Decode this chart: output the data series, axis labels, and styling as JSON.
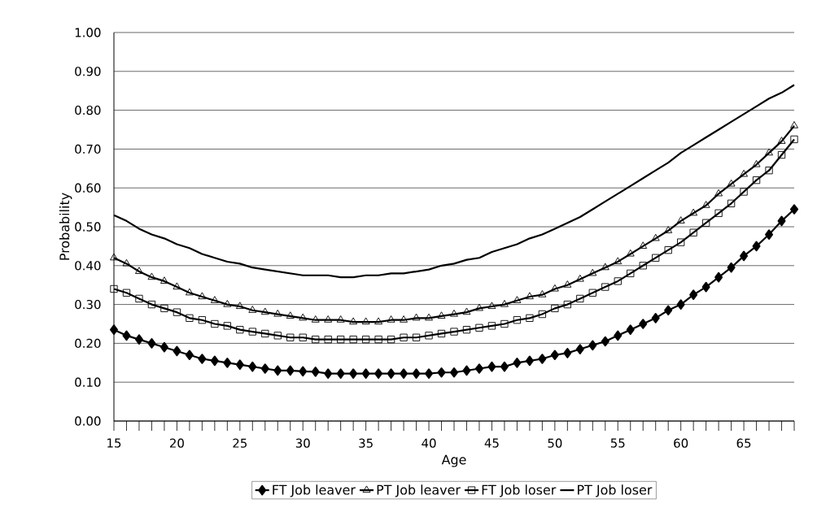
{
  "chart_data": {
    "type": "line",
    "xlabel": "Age",
    "ylabel": "Probability",
    "categories": [
      "15",
      null,
      null,
      null,
      null,
      "20",
      null,
      null,
      null,
      null,
      "25",
      null,
      null,
      null,
      null,
      "30",
      null,
      null,
      null,
      null,
      "35",
      null,
      null,
      null,
      null,
      "40",
      null,
      null,
      null,
      null,
      "45",
      null,
      null,
      null,
      null,
      "50",
      null,
      null,
      null,
      null,
      "55",
      null,
      null,
      null,
      null,
      "60",
      null,
      null,
      null,
      null,
      "65",
      null,
      null,
      null,
      null
    ],
    "ylim": [
      0,
      1
    ],
    "yticks": [
      {
        "value": 0,
        "label": "0.00"
      },
      {
        "value": 0.1,
        "label": "0.10"
      },
      {
        "value": 0.2,
        "label": "0.20"
      },
      {
        "value": 0.3,
        "label": "0.30"
      },
      {
        "value": 0.4,
        "label": "0.40"
      },
      {
        "value": 0.5,
        "label": "0.50"
      },
      {
        "value": 0.6,
        "label": "0.60"
      },
      {
        "value": 0.7,
        "label": "0.70"
      },
      {
        "value": 0.8,
        "label": "0.80"
      },
      {
        "value": 0.9,
        "label": "0.90"
      },
      {
        "value": 1,
        "label": "1.00"
      }
    ],
    "grid": "y",
    "legend": "bottom",
    "series": [
      {
        "name": "FT Job leaver",
        "color": "#000000",
        "marker": "diamond",
        "values": [
          0.235,
          0.22,
          0.21,
          0.2,
          0.19,
          0.18,
          0.17,
          0.16,
          0.155,
          0.15,
          0.145,
          0.14,
          0.135,
          0.13,
          0.13,
          0.128,
          0.127,
          0.122,
          0.122,
          0.122,
          0.122,
          0.122,
          0.122,
          0.122,
          0.122,
          0.122,
          0.125,
          0.125,
          0.13,
          0.135,
          0.14,
          0.14,
          0.15,
          0.155,
          0.16,
          0.17,
          0.175,
          0.185,
          0.195,
          0.205,
          0.22,
          0.235,
          0.25,
          0.265,
          0.285,
          0.3,
          0.325,
          0.345,
          0.37,
          0.395,
          0.425,
          0.45,
          0.48,
          0.515,
          0.545
        ]
      },
      {
        "name": "PT Job leaver",
        "color": "#000000",
        "marker": "triangle",
        "values": [
          0.42,
          0.405,
          0.385,
          0.37,
          0.36,
          0.345,
          0.33,
          0.32,
          0.31,
          0.3,
          0.295,
          0.285,
          0.28,
          0.275,
          0.27,
          0.265,
          0.26,
          0.26,
          0.26,
          0.255,
          0.255,
          0.255,
          0.26,
          0.26,
          0.265,
          0.265,
          0.27,
          0.275,
          0.28,
          0.29,
          0.295,
          0.3,
          0.31,
          0.32,
          0.325,
          0.34,
          0.35,
          0.365,
          0.38,
          0.395,
          0.41,
          0.43,
          0.45,
          0.47,
          0.49,
          0.515,
          0.535,
          0.555,
          0.585,
          0.61,
          0.635,
          0.66,
          0.69,
          0.72,
          0.76
        ]
      },
      {
        "name": "FT Job loser",
        "color": "#000000",
        "marker": "square",
        "values": [
          0.34,
          0.33,
          0.315,
          0.3,
          0.29,
          0.28,
          0.265,
          0.26,
          0.25,
          0.245,
          0.235,
          0.23,
          0.225,
          0.22,
          0.215,
          0.215,
          0.21,
          0.21,
          0.21,
          0.21,
          0.21,
          0.21,
          0.21,
          0.215,
          0.215,
          0.22,
          0.225,
          0.23,
          0.235,
          0.24,
          0.245,
          0.25,
          0.26,
          0.265,
          0.275,
          0.29,
          0.3,
          0.315,
          0.33,
          0.345,
          0.36,
          0.38,
          0.4,
          0.42,
          0.44,
          0.46,
          0.485,
          0.51,
          0.535,
          0.56,
          0.59,
          0.62,
          0.645,
          0.685,
          0.725
        ]
      },
      {
        "name": "PT Job loser",
        "color": "#000000",
        "marker": "none",
        "values": [
          0.53,
          0.515,
          0.495,
          0.48,
          0.47,
          0.455,
          0.445,
          0.43,
          0.42,
          0.41,
          0.405,
          0.395,
          0.39,
          0.385,
          0.38,
          0.375,
          0.375,
          0.375,
          0.37,
          0.37,
          0.375,
          0.375,
          0.38,
          0.38,
          0.385,
          0.39,
          0.4,
          0.405,
          0.415,
          0.42,
          0.435,
          0.445,
          0.455,
          0.47,
          0.48,
          0.495,
          0.51,
          0.525,
          0.545,
          0.565,
          0.585,
          0.605,
          0.625,
          0.645,
          0.665,
          0.69,
          0.71,
          0.73,
          0.75,
          0.77,
          0.79,
          0.81,
          0.83,
          0.845,
          0.865
        ]
      }
    ]
  }
}
